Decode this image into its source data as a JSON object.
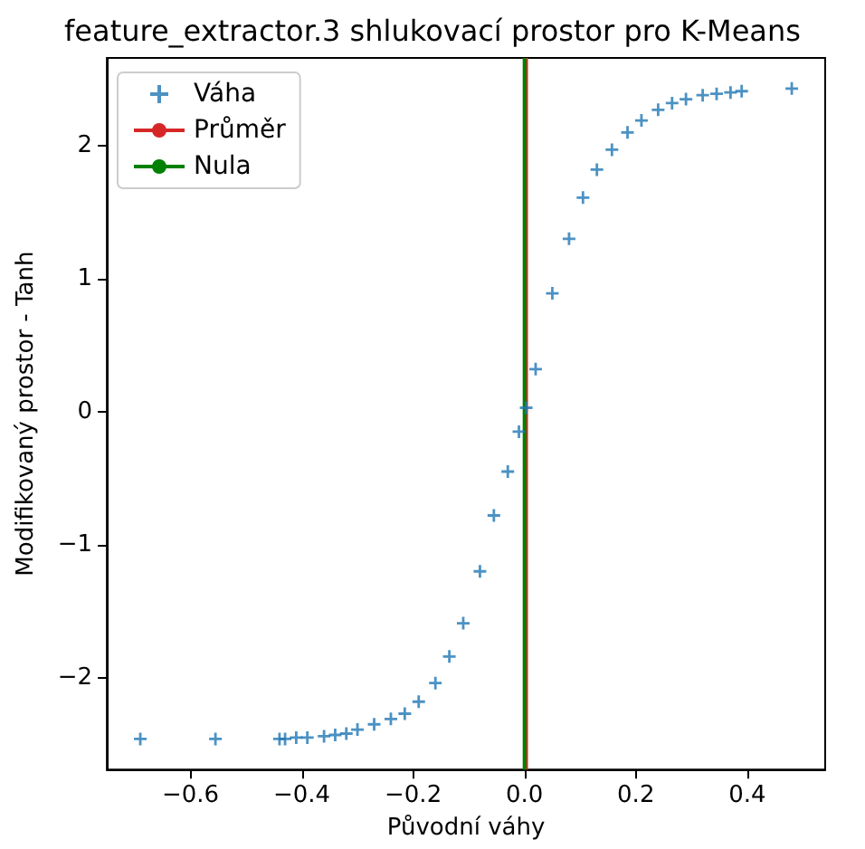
{
  "chart_data": {
    "type": "scatter",
    "title": "feature_extractor.3 shlukovací prostor pro K-Means",
    "xlabel": "Původní váhy",
    "ylabel": "Modifikovaný prostor - Tanh",
    "xlim": [
      -0.75,
      0.54
    ],
    "xticks": [
      {
        "value": -0.6,
        "label": "−0.6"
      },
      {
        "value": -0.4,
        "label": "−0.4"
      },
      {
        "value": -0.2,
        "label": "−0.2"
      },
      {
        "value": 0,
        "label": "0.0"
      },
      {
        "value": 0.2,
        "label": "0.2"
      },
      {
        "value": 0.4,
        "label": "0.4"
      }
    ],
    "ylim": [
      -2.69,
      2.66
    ],
    "yticks": [
      {
        "value": -2,
        "label": "−2"
      },
      {
        "value": -1,
        "label": "−1"
      },
      0,
      1,
      2
    ],
    "marker": "cross",
    "grid": false,
    "legend": "top left",
    "series": [
      {
        "name": "Váha",
        "color": "#1f77b4",
        "x": [
          -0.69,
          -0.555,
          -0.44,
          -0.43,
          -0.41,
          -0.39,
          -0.36,
          -0.34,
          -0.32,
          -0.3,
          -0.27,
          -0.24,
          -0.215,
          -0.19,
          -0.16,
          -0.135,
          -0.11,
          -0.08,
          -0.055,
          -0.03,
          -0.01,
          0.003,
          0.02,
          0.05,
          0.08,
          0.105,
          0.13,
          0.157,
          0.185,
          0.21,
          0.24,
          0.265,
          0.29,
          0.32,
          0.345,
          0.37,
          0.39,
          0.48
        ],
        "values": [
          -2.46,
          -2.46,
          -2.46,
          -2.46,
          -2.45,
          -2.45,
          -2.44,
          -2.43,
          -2.42,
          -2.39,
          -2.35,
          -2.31,
          -2.27,
          -2.18,
          -2.04,
          -1.84,
          -1.59,
          -1.2,
          -0.78,
          -0.45,
          -0.15,
          0.03,
          0.32,
          0.89,
          1.3,
          1.61,
          1.82,
          1.97,
          2.1,
          2.19,
          2.27,
          2.32,
          2.35,
          2.38,
          2.39,
          2.4,
          2.41,
          2.43
        ]
      },
      {
        "name": "Průměr",
        "type": "line",
        "marker": "none",
        "color": "#d62728",
        "x": [
          0.003,
          0.003
        ],
        "values": [
          -2.69,
          2.66
        ]
      },
      {
        "name": "Nula",
        "type": "line",
        "marker": "none",
        "color": "#008000",
        "x": [
          0,
          0
        ],
        "values": [
          -2.69,
          2.66
        ]
      }
    ]
  }
}
